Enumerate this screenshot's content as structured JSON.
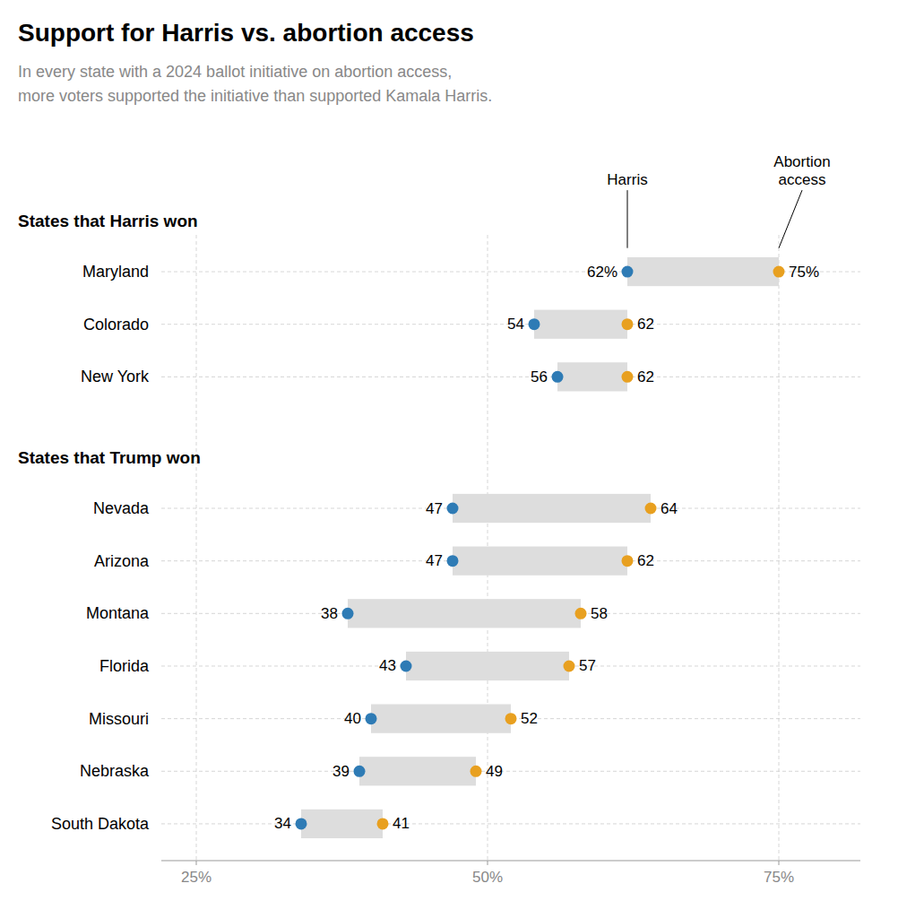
{
  "chart_data": {
    "type": "dumbbell",
    "orientation": "horizontal",
    "title": "Support for Harris vs. abortion access",
    "subtitle": "In every state with a 2024 ballot initiative on abortion access,\nmore voters supported the initiative than supported Kamala Harris.",
    "groups": [
      {
        "name": "States that Harris won",
        "categories": [
          "Maryland",
          "Colorado",
          "New York"
        ]
      },
      {
        "name": "States that Trump won",
        "categories": [
          "Nevada",
          "Arizona",
          "Montana",
          "Florida",
          "Missouri",
          "Nebraska",
          "South Dakota"
        ]
      }
    ],
    "series": [
      {
        "name": "Harris",
        "color": "#2E7BB5",
        "values": [
          62,
          54,
          56,
          47,
          47,
          38,
          43,
          40,
          39,
          34
        ],
        "value_labels": [
          "62%",
          "54",
          "56",
          "47",
          "47",
          "38",
          "43",
          "40",
          "39",
          "34"
        ]
      },
      {
        "name": "Abortion\naccess",
        "color": "#E8A020",
        "values": [
          75,
          62,
          62,
          64,
          62,
          58,
          57,
          52,
          49,
          41
        ],
        "value_labels": [
          "75%",
          "62",
          "62",
          "64",
          "62",
          "58",
          "57",
          "52",
          "49",
          "41"
        ]
      }
    ],
    "color": "#DDDDDD",
    "data_labels": true,
    "grid": true,
    "xlim": [
      22,
      82
    ],
    "xticks": [
      {
        "value": 25,
        "label": "25%"
      },
      {
        "value": 50,
        "label": "50%"
      },
      {
        "value": 75,
        "label": "75%"
      }
    ]
  }
}
